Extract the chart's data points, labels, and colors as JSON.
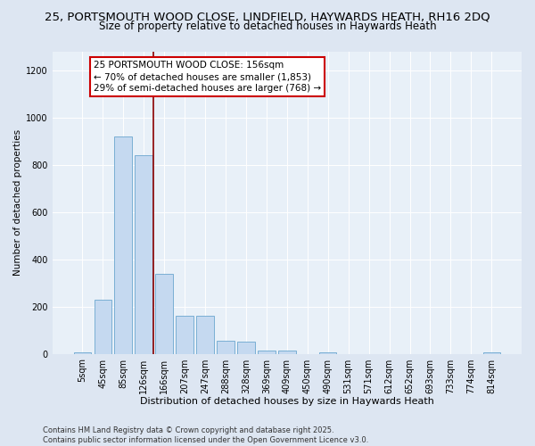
{
  "title_line1": "25, PORTSMOUTH WOOD CLOSE, LINDFIELD, HAYWARDS HEATH, RH16 2DQ",
  "title_line2": "Size of property relative to detached houses in Haywards Heath",
  "xlabel": "Distribution of detached houses by size in Haywards Heath",
  "ylabel": "Number of detached properties",
  "categories": [
    "5sqm",
    "45sqm",
    "85sqm",
    "126sqm",
    "166sqm",
    "207sqm",
    "247sqm",
    "288sqm",
    "328sqm",
    "369sqm",
    "409sqm",
    "450sqm",
    "490sqm",
    "531sqm",
    "571sqm",
    "612sqm",
    "652sqm",
    "693sqm",
    "733sqm",
    "774sqm",
    "814sqm"
  ],
  "values": [
    5,
    230,
    920,
    840,
    340,
    160,
    160,
    55,
    50,
    15,
    15,
    0,
    5,
    0,
    0,
    0,
    0,
    0,
    0,
    0,
    5
  ],
  "bar_color": "#c5d9f0",
  "bar_edge_color": "#7aafd4",
  "vline_x_index": 3.45,
  "vline_color": "#8b0000",
  "annotation_text": "25 PORTSMOUTH WOOD CLOSE: 156sqm\n← 70% of detached houses are smaller (1,853)\n29% of semi-detached houses are larger (768) →",
  "annotation_box_color": "white",
  "annotation_box_edge_color": "#cc0000",
  "ylim": [
    0,
    1280
  ],
  "yticks": [
    0,
    200,
    400,
    600,
    800,
    1000,
    1200
  ],
  "footer_line1": "Contains HM Land Registry data © Crown copyright and database right 2025.",
  "footer_line2": "Contains public sector information licensed under the Open Government Licence v3.0.",
  "bg_color": "#dde6f2",
  "plot_bg_color": "#e8f0f8",
  "title_fontsize": 9.5,
  "subtitle_fontsize": 8.5,
  "tick_fontsize": 7,
  "xlabel_fontsize": 8,
  "ylabel_fontsize": 7.5
}
